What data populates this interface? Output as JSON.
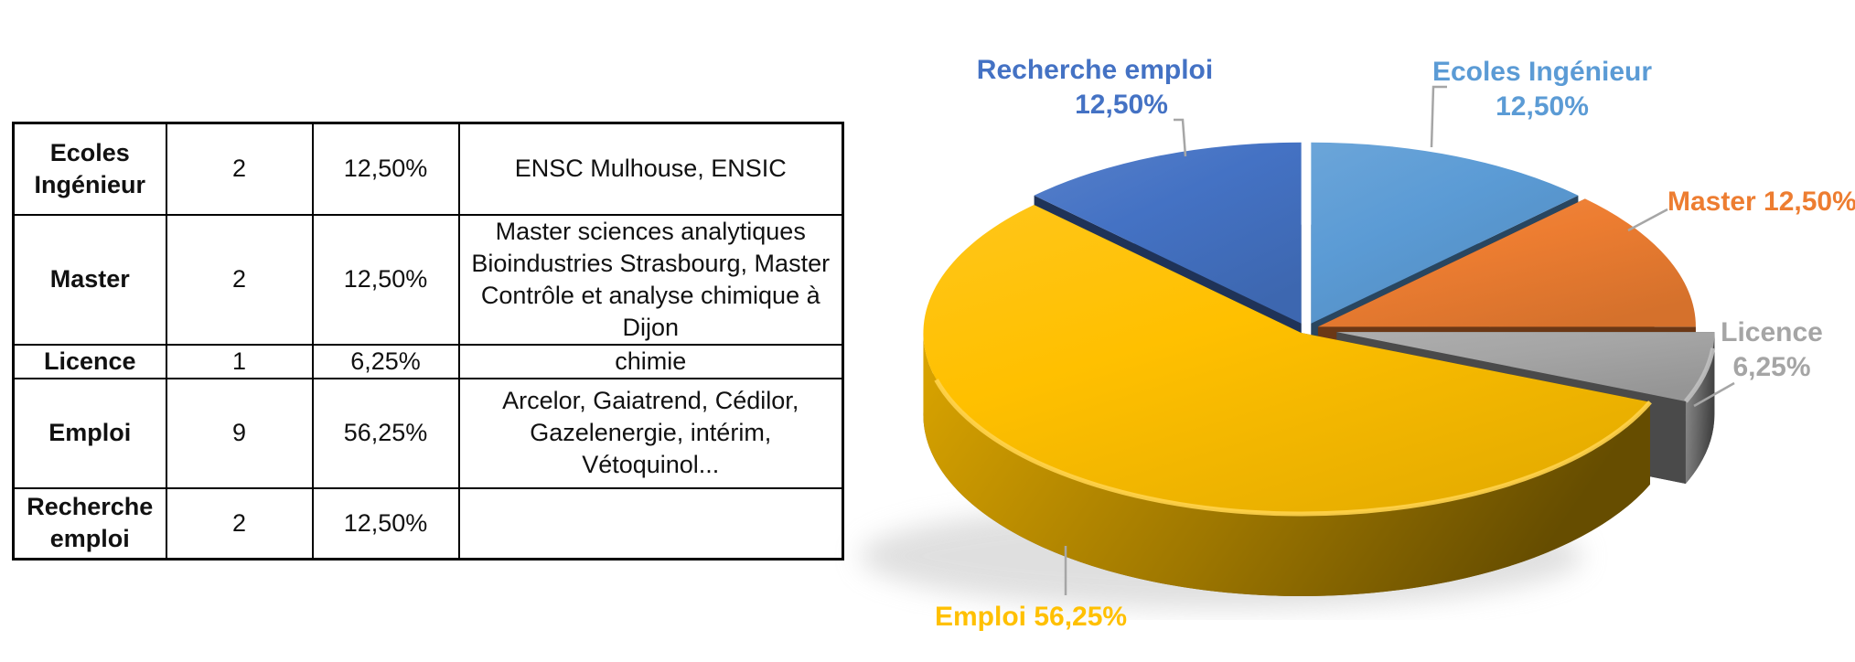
{
  "page": {
    "background": "#ffffff"
  },
  "table": {
    "rows": [
      {
        "label": "Ecoles Ingénieur",
        "count": "2",
        "percent": "12,50%",
        "details": "ENSC Mulhouse, ENSIC"
      },
      {
        "label": "Master",
        "count": "2",
        "percent": "12,50%",
        "details": "Master sciences analytiques Bioindustries Strasbourg, Master Contrôle et analyse chimique à Dijon"
      },
      {
        "label": "Licence",
        "count": "1",
        "percent": "6,25%",
        "details": "chimie"
      },
      {
        "label": "Emploi",
        "count": "9",
        "percent": "56,25%",
        "details": "Arcelor, Gaiatrend, Cédilor, Gazelenergie, intérim, Vétoquinol..."
      },
      {
        "label": "Recherche emploi",
        "count": "2",
        "percent": "12,50%",
        "details": ""
      }
    ]
  },
  "chart": {
    "callouts": [
      {
        "name": "recherche-emploi",
        "line1": "Recherche emploi",
        "line2": "12,50%",
        "color": "#4472C4"
      },
      {
        "name": "ecoles-ingenieur",
        "line1": "Ecoles Ingénieur",
        "line2": "12,50%",
        "color": "#5B9BD5"
      },
      {
        "name": "master",
        "line1": "Master 12,50%",
        "line2": "",
        "color": "#ED7D31"
      },
      {
        "name": "licence",
        "line1": "Licence",
        "line2": "6,25%",
        "color": "#A5A5A5"
      },
      {
        "name": "emploi",
        "line1": "Emploi 56,25%",
        "line2": "",
        "color": "#FFC000"
      }
    ],
    "leader_color": "#A6A6A6"
  },
  "chart_data": {
    "type": "pie",
    "style": "3d exploded pie, clockwise from 12 o'clock, no legend, category callouts",
    "categories": [
      "Ecoles Ingénieur",
      "Master",
      "Licence",
      "Emploi",
      "Recherche emploi"
    ],
    "values": [
      12.5,
      12.5,
      6.25,
      56.25,
      12.5
    ],
    "value_labels": [
      "12,50%",
      "12,50%",
      "6,25%",
      "56,25%",
      "12,50%"
    ],
    "counts": [
      2,
      2,
      1,
      9,
      2
    ],
    "colors": [
      "#5B9BD5",
      "#ED7D31",
      "#A5A5A5",
      "#FFC000",
      "#4472C4"
    ],
    "title": "",
    "legend": "none"
  }
}
